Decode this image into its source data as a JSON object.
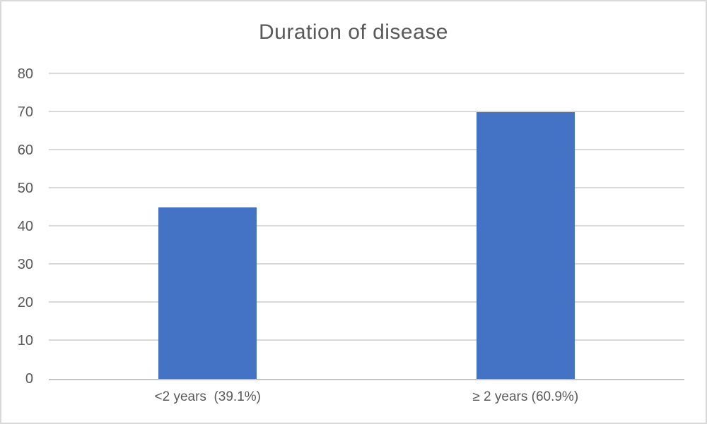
{
  "chart_data": {
    "type": "bar",
    "title": "Duration of disease",
    "categories": [
      "<2 years  (39.1%)",
      "≥ 2 years (60.9%)"
    ],
    "values": [
      45,
      70
    ],
    "xlabel": "",
    "ylabel": "",
    "ylim": [
      0,
      80
    ],
    "yticks": [
      0,
      10,
      20,
      30,
      40,
      50,
      60,
      70,
      80
    ],
    "grid": true,
    "legend": "none",
    "bar_color": "#4472C4",
    "text_color": "#595959",
    "gridline_color": "#D9D9D9",
    "axis_line_color": "#C3C3C3"
  }
}
